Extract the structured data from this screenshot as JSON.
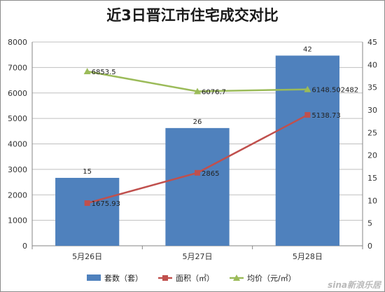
{
  "chart_data": {
    "type": "bar+line",
    "title": "近3日晋江市住宅成交对比",
    "categories": [
      "5月26日",
      "5月27日",
      "5月28日"
    ],
    "y_left": {
      "min": 0,
      "max": 8000,
      "ticks": [
        "0",
        "1000",
        "2000",
        "3000",
        "4000",
        "5000",
        "6000",
        "7000",
        "8000"
      ]
    },
    "y_right": {
      "min": 0,
      "max": 45,
      "ticks": [
        "0",
        "5",
        "10",
        "15",
        "20",
        "25",
        "30",
        "35",
        "40",
        "45"
      ]
    },
    "grid": true,
    "legend_position": "bottom",
    "series": [
      {
        "name": "套数（套）",
        "kind": "bar",
        "axis": "right",
        "color": "#4f81bd",
        "values": [
          15,
          26,
          42
        ],
        "labels": [
          "15",
          "26",
          "42"
        ]
      },
      {
        "name": "面积（㎡）",
        "kind": "line",
        "axis": "left",
        "color": "#c0504d",
        "marker": "square",
        "values": [
          1675.93,
          2865,
          5138.73
        ],
        "labels": [
          "1675.93",
          "2865",
          "5138.73"
        ]
      },
      {
        "name": "均价（元/㎡）",
        "kind": "line",
        "axis": "right",
        "color": "#9bbb59",
        "marker": "triangle",
        "values": [
          38.5,
          34.1,
          34.55
        ],
        "labels": [
          "6853.5",
          "6076.7",
          "6148.502482"
        ]
      }
    ]
  },
  "watermark": "sina新浪乐居"
}
